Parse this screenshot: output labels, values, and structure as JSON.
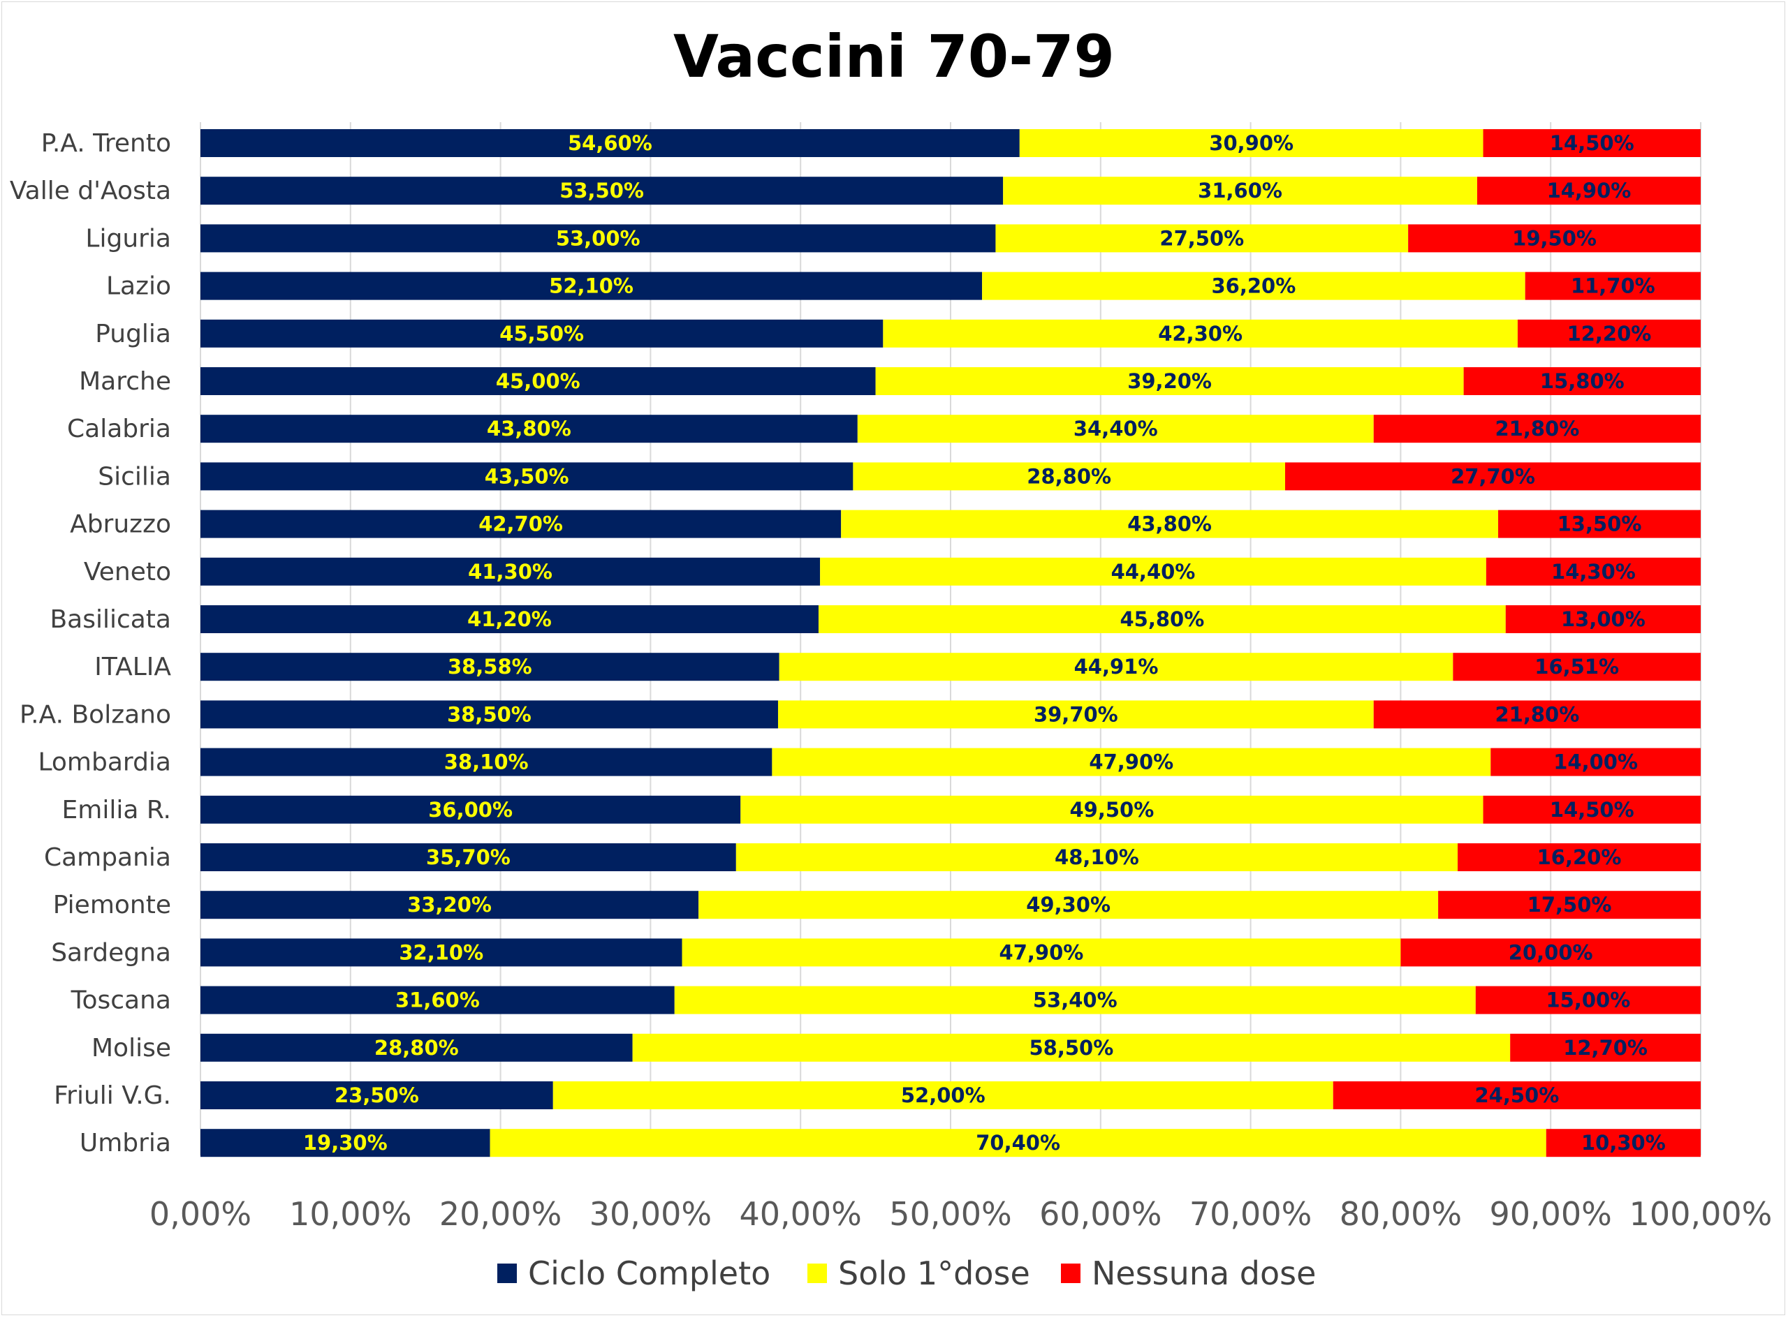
{
  "chart_data": {
    "type": "bar",
    "orientation": "horizontal",
    "stacked": true,
    "title": "Vaccini 70-79",
    "xlim": [
      0,
      100
    ],
    "grid": true,
    "legend_position": "bottom",
    "x_ticks": [
      "0,00%",
      "10,00%",
      "20,00%",
      "30,00%",
      "40,00%",
      "50,00%",
      "60,00%",
      "70,00%",
      "80,00%",
      "90,00%",
      "100,00%"
    ],
    "categories": [
      "P.A. Trento",
      "Valle d'Aosta",
      "Liguria",
      "Lazio",
      "Puglia",
      "Marche",
      "Calabria",
      "Sicilia",
      "Abruzzo",
      "Veneto",
      "Basilicata",
      "ITALIA",
      "P.A. Bolzano",
      "Lombardia",
      "Emilia R.",
      "Campania",
      "Piemonte",
      "Sardegna",
      "Toscana",
      "Molise",
      "Friuli V.G.",
      "Umbria"
    ],
    "series": [
      {
        "name": "Ciclo Completo",
        "color": "#002060",
        "label_color": "#ffff00",
        "values": [
          54.6,
          53.5,
          53.0,
          52.1,
          45.5,
          45.0,
          43.8,
          43.5,
          42.7,
          41.3,
          41.2,
          38.58,
          38.5,
          38.1,
          36.0,
          35.7,
          33.2,
          32.1,
          31.6,
          28.8,
          23.5,
          19.3
        ],
        "labels": [
          "54,60%",
          "53,50%",
          "53,00%",
          "52,10%",
          "45,50%",
          "45,00%",
          "43,80%",
          "43,50%",
          "42,70%",
          "41,30%",
          "41,20%",
          "38,58%",
          "38,50%",
          "38,10%",
          "36,00%",
          "35,70%",
          "33,20%",
          "32,10%",
          "31,60%",
          "28,80%",
          "23,50%",
          "19,30%"
        ]
      },
      {
        "name": "Solo 1°dose",
        "color": "#ffff00",
        "label_color": "#002060",
        "values": [
          30.9,
          31.6,
          27.5,
          36.2,
          42.3,
          39.2,
          34.4,
          28.8,
          43.8,
          44.4,
          45.8,
          44.91,
          39.7,
          47.9,
          49.5,
          48.1,
          49.3,
          47.9,
          53.4,
          58.5,
          52.0,
          70.4
        ],
        "labels": [
          "30,90%",
          "31,60%",
          "27,50%",
          "36,20%",
          "42,30%",
          "39,20%",
          "34,40%",
          "28,80%",
          "43,80%",
          "44,40%",
          "45,80%",
          "44,91%",
          "39,70%",
          "47,90%",
          "49,50%",
          "48,10%",
          "49,30%",
          "47,90%",
          "53,40%",
          "58,50%",
          "52,00%",
          "70,40%"
        ]
      },
      {
        "name": "Nessuna dose",
        "color": "#ff0000",
        "label_color": "#002060",
        "values": [
          14.5,
          14.9,
          19.5,
          11.7,
          12.2,
          15.8,
          21.8,
          27.7,
          13.5,
          14.3,
          13.0,
          16.51,
          21.8,
          14.0,
          14.5,
          16.2,
          17.5,
          20.0,
          15.0,
          12.7,
          24.5,
          10.3
        ],
        "labels": [
          "14,50%",
          "14,90%",
          "19,50%",
          "11,70%",
          "12,20%",
          "15,80%",
          "21,80%",
          "27,70%",
          "13,50%",
          "14,30%",
          "13,00%",
          "16,51%",
          "21,80%",
          "14,00%",
          "14,50%",
          "16,20%",
          "17,50%",
          "20,00%",
          "15,00%",
          "12,70%",
          "24,50%",
          "10,30%"
        ]
      }
    ]
  }
}
